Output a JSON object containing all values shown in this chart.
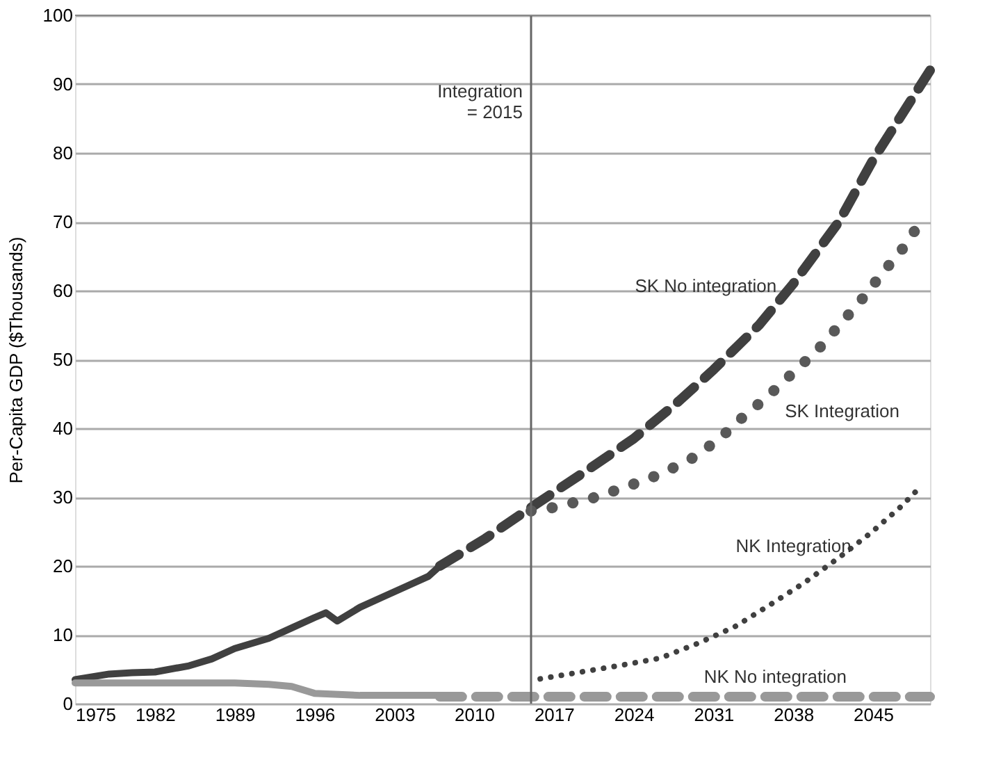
{
  "chart_data": {
    "type": "line",
    "ylabel": "Per-Capita GDP ($Thousands)",
    "xlim": [
      1975,
      2050
    ],
    "xticks": [
      1975,
      1982,
      1989,
      1996,
      2003,
      2010,
      2017,
      2024,
      2031,
      2038,
      2045
    ],
    "ylim": [
      0,
      100
    ],
    "yticks": [
      0,
      10,
      20,
      30,
      40,
      50,
      60,
      70,
      80,
      90,
      100
    ],
    "grid": "y",
    "series": [
      {
        "color": "#404040",
        "line_style": "solid",
        "x": [
          1975,
          1978,
          1980,
          1982,
          1985,
          1987,
          1989,
          1992,
          1994,
          1996,
          1997,
          1998,
          2000,
          2002,
          2004,
          2006,
          2007
        ],
        "values": [
          3.5,
          4.3,
          4.5,
          4.6,
          5.5,
          6.5,
          8,
          9.5,
          11,
          12.5,
          13.2,
          12,
          14,
          15.5,
          17,
          18.5,
          20
        ]
      },
      {
        "color": "#999999",
        "line_style": "solid",
        "x": [
          1975,
          1989,
          1992,
          1994,
          1996,
          2000,
          2007
        ],
        "values": [
          3,
          3,
          2.8,
          2.5,
          1.5,
          1.2,
          1.2
        ]
      },
      {
        "name": "SK No integration",
        "color": "#404040",
        "line_style": "dashed",
        "x": [
          2007,
          2011,
          2015,
          2020,
          2024,
          2028,
          2031,
          2035,
          2038,
          2042,
          2045,
          2050
        ],
        "values": [
          20,
          24,
          28.5,
          34,
          38.5,
          44,
          48.5,
          55,
          61,
          70,
          79,
          92
        ]
      },
      {
        "name": "NK No integration",
        "color": "#999999",
        "line_style": "dashed",
        "x": [
          2007,
          2050
        ],
        "values": [
          1,
          1
        ]
      },
      {
        "name": "SK Integration",
        "color": "#595959",
        "line_style": "dotted",
        "x": [
          2015,
          2017,
          2020.7,
          2023.5,
          2026.3,
          2029,
          2031.4,
          2033.5,
          2035.8,
          2038,
          2040.2,
          2042,
          2044,
          2045.8,
          2047.7,
          2049.3
        ],
        "values": [
          28,
          28.5,
          30,
          31.6,
          33.3,
          35.5,
          38.3,
          41.5,
          44.7,
          48.1,
          51.5,
          54.9,
          58.7,
          62.5,
          66.3,
          70.3
        ]
      },
      {
        "name": "NK Integration",
        "color": "#404040",
        "line_style": "dotted",
        "x": [
          2015.8,
          2019.4,
          2023,
          2026.3,
          2029.7,
          2032.9,
          2036,
          2039,
          2042,
          2044.8,
          2047.5,
          2048.8
        ],
        "values": [
          3.6,
          4.6,
          5.6,
          6.6,
          8.8,
          11.2,
          14.4,
          17.6,
          21.2,
          24.8,
          28.7,
          30.9
        ]
      }
    ],
    "ref_lines": [
      {
        "axis": "x",
        "value": 2015,
        "label": "Integration\n= 2015",
        "color": "#666666"
      }
    ]
  }
}
